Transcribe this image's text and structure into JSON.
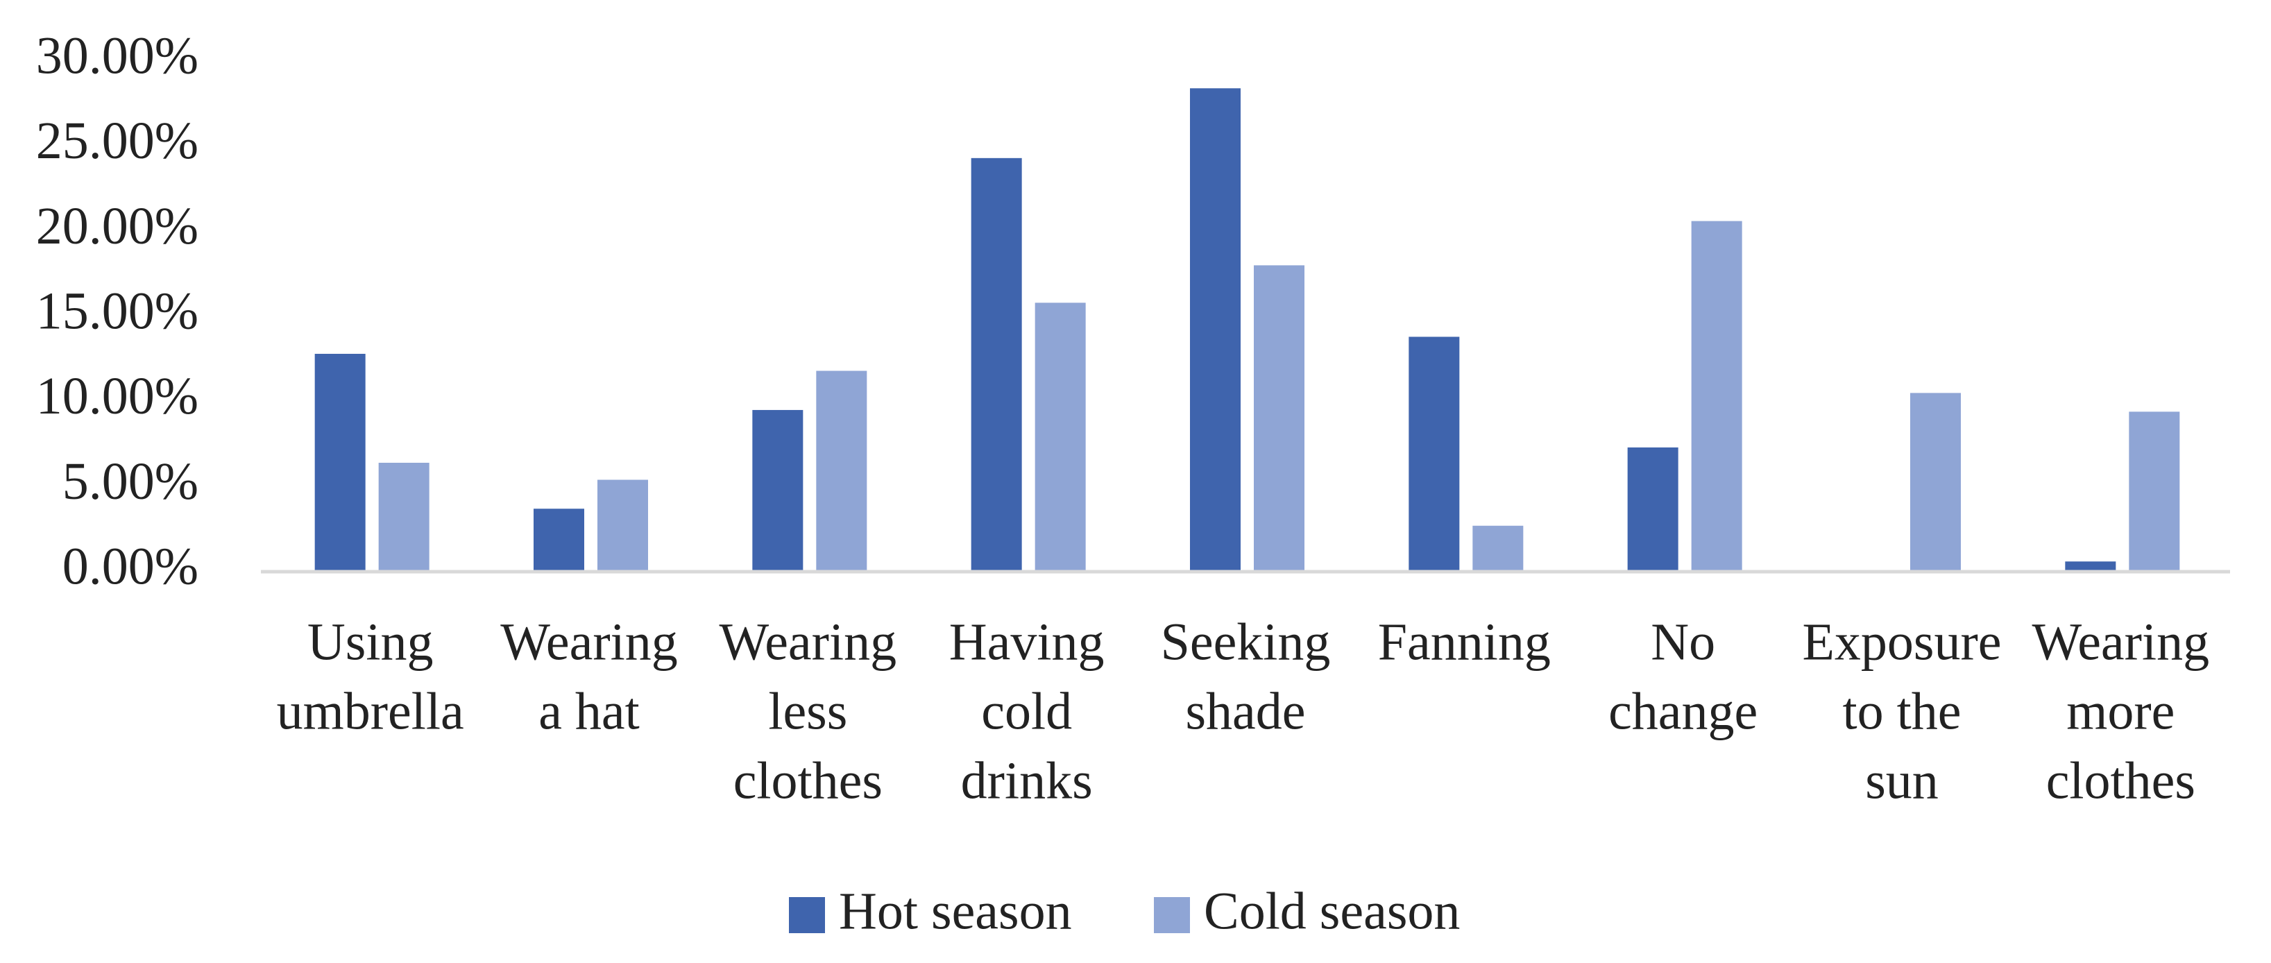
{
  "chart_data": {
    "type": "bar",
    "categories": [
      [
        "Using",
        "umbrella"
      ],
      [
        "Wearing",
        "a hat"
      ],
      [
        "Wearing",
        "less",
        "clothes"
      ],
      [
        "Having",
        "cold",
        "drinks"
      ],
      [
        "Seeking",
        "shade"
      ],
      [
        "Fanning"
      ],
      [
        "No",
        "change"
      ],
      [
        "Exposure",
        "to the",
        "sun"
      ],
      [
        "Wearing",
        "more",
        "clothes"
      ]
    ],
    "series": [
      {
        "name": "Hot season",
        "color": "#3f64ad",
        "values": [
          12.8,
          3.7,
          9.5,
          24.3,
          28.4,
          13.8,
          7.3,
          0.1,
          0.6
        ]
      },
      {
        "name": "Cold season",
        "color": "#8fa5d5",
        "values": [
          6.4,
          5.4,
          11.8,
          15.8,
          18.0,
          2.7,
          20.6,
          10.5,
          9.4
        ]
      }
    ],
    "ylim": [
      0,
      30
    ],
    "yticks": [
      {
        "value": 0,
        "label": "0.00%"
      },
      {
        "value": 5,
        "label": "5.00%"
      },
      {
        "value": 10,
        "label": "10.00%"
      },
      {
        "value": 15,
        "label": "15.00%"
      },
      {
        "value": 20,
        "label": "20.00%"
      },
      {
        "value": 25,
        "label": "25.00%"
      },
      {
        "value": 30,
        "label": "30.00%"
      }
    ],
    "grid": false,
    "legend": "bottom"
  }
}
